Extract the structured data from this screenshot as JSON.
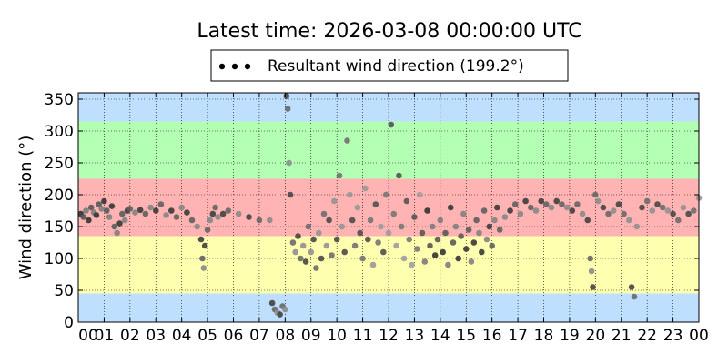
{
  "chart_data": {
    "type": "scatter",
    "title": "Latest time: 2026-03-08 00:00:00 UTC",
    "legend": {
      "label": "Resultant wind direction (199.2°)",
      "placement": "top-center"
    },
    "xlabel": "",
    "ylabel": "Wind direction (°)",
    "xlim": [
      0,
      24
    ],
    "ylim": [
      0,
      360
    ],
    "grid": true,
    "x_tick_labels": [
      "00",
      "01",
      "02",
      "03",
      "04",
      "05",
      "06",
      "07",
      "08",
      "09",
      "10",
      "11",
      "12",
      "13",
      "14",
      "15",
      "16",
      "17",
      "18",
      "19",
      "20",
      "21",
      "22",
      "23",
      "00"
    ],
    "y_ticks": [
      0,
      50,
      100,
      150,
      200,
      250,
      300,
      350
    ],
    "bands": [
      {
        "from": 0,
        "to": 45,
        "color": "#bfdfff"
      },
      {
        "from": 45,
        "to": 135,
        "color": "#ffffb0"
      },
      {
        "from": 135,
        "to": 225,
        "color": "#ffb3b3"
      },
      {
        "from": 225,
        "to": 315,
        "color": "#b3ffb3"
      },
      {
        "from": 315,
        "to": 360,
        "color": "#bfdfff"
      }
    ],
    "series": [
      {
        "point_color_range": [
          "#222222",
          "#aaaaaa"
        ],
        "points": [
          [
            0.1,
            170
          ],
          [
            0.2,
            165
          ],
          [
            0.3,
            175
          ],
          [
            0.4,
            160
          ],
          [
            0.5,
            180
          ],
          [
            0.6,
            172
          ],
          [
            0.7,
            168
          ],
          [
            0.8,
            185
          ],
          [
            0.9,
            178
          ],
          [
            1.0,
            190
          ],
          [
            1.1,
            175
          ],
          [
            1.2,
            165
          ],
          [
            1.3,
            182
          ],
          [
            1.4,
            150
          ],
          [
            1.5,
            140
          ],
          [
            1.6,
            155
          ],
          [
            1.7,
            170
          ],
          [
            1.8,
            160
          ],
          [
            1.9,
            175
          ],
          [
            2.0,
            178
          ],
          [
            2.2,
            172
          ],
          [
            2.4,
            176
          ],
          [
            2.6,
            170
          ],
          [
            2.8,
            180
          ],
          [
            3.0,
            175
          ],
          [
            3.2,
            185
          ],
          [
            3.4,
            168
          ],
          [
            3.6,
            175
          ],
          [
            3.8,
            165
          ],
          [
            4.0,
            180
          ],
          [
            4.2,
            172
          ],
          [
            4.4,
            160
          ],
          [
            4.6,
            150
          ],
          [
            4.75,
            130
          ],
          [
            4.8,
            100
          ],
          [
            4.85,
            85
          ],
          [
            4.9,
            120
          ],
          [
            5.0,
            145
          ],
          [
            5.1,
            160
          ],
          [
            5.2,
            170
          ],
          [
            5.3,
            180
          ],
          [
            5.4,
            165
          ],
          [
            5.6,
            170
          ],
          [
            5.8,
            175
          ],
          [
            6.2,
            170
          ],
          [
            6.6,
            165
          ],
          [
            7.0,
            160
          ],
          [
            7.4,
            160
          ],
          [
            7.5,
            30
          ],
          [
            7.6,
            20
          ],
          [
            7.7,
            15
          ],
          [
            7.8,
            12
          ],
          [
            7.9,
            25
          ],
          [
            8.0,
            20
          ],
          [
            8.05,
            355
          ],
          [
            8.1,
            335
          ],
          [
            8.15,
            250
          ],
          [
            8.2,
            200
          ],
          [
            8.3,
            125
          ],
          [
            8.4,
            110
          ],
          [
            8.5,
            135
          ],
          [
            8.6,
            100
          ],
          [
            8.7,
            120
          ],
          [
            8.8,
            95
          ],
          [
            8.9,
            150
          ],
          [
            9.0,
            110
          ],
          [
            9.1,
            130
          ],
          [
            9.2,
            85
          ],
          [
            9.3,
            140
          ],
          [
            9.4,
            100
          ],
          [
            9.5,
            170
          ],
          [
            9.6,
            120
          ],
          [
            9.7,
            160
          ],
          [
            9.8,
            105
          ],
          [
            9.9,
            190
          ],
          [
            10.0,
            130
          ],
          [
            10.1,
            230
          ],
          [
            10.2,
            150
          ],
          [
            10.3,
            110
          ],
          [
            10.4,
            285
          ],
          [
            10.5,
            200
          ],
          [
            10.6,
            160
          ],
          [
            10.7,
            120
          ],
          [
            10.8,
            180
          ],
          [
            10.9,
            140
          ],
          [
            11.0,
            100
          ],
          [
            11.1,
            210
          ],
          [
            11.2,
            130
          ],
          [
            11.3,
            160
          ],
          [
            11.4,
            90
          ],
          [
            11.5,
            185
          ],
          [
            11.6,
            125
          ],
          [
            11.7,
            150
          ],
          [
            11.8,
            110
          ],
          [
            11.9,
            200
          ],
          [
            12.0,
            140
          ],
          [
            12.1,
            310
          ],
          [
            12.2,
            170
          ],
          [
            12.3,
            120
          ],
          [
            12.4,
            230
          ],
          [
            12.5,
            150
          ],
          [
            12.6,
            100
          ],
          [
            12.7,
            190
          ],
          [
            12.8,
            130
          ],
          [
            12.9,
            90
          ],
          [
            13.0,
            165
          ],
          [
            13.1,
            115
          ],
          [
            13.2,
            200
          ],
          [
            13.3,
            140
          ],
          [
            13.4,
            95
          ],
          [
            13.5,
            175
          ],
          [
            13.6,
            120
          ],
          [
            13.7,
            150
          ],
          [
            13.8,
            105
          ],
          [
            13.9,
            130
          ],
          [
            14.0,
            160
          ],
          [
            14.1,
            110
          ],
          [
            14.2,
            140
          ],
          [
            14.3,
            90
          ],
          [
            14.4,
            180
          ],
          [
            14.5,
            125
          ],
          [
            14.6,
            150
          ],
          [
            14.7,
            100
          ],
          [
            14.8,
            135
          ],
          [
            14.9,
            170
          ],
          [
            15.0,
            115
          ],
          [
            15.1,
            145
          ],
          [
            15.2,
            95
          ],
          [
            15.3,
            125
          ],
          [
            15.4,
            160
          ],
          [
            15.5,
            140
          ],
          [
            15.6,
            110
          ],
          [
            15.7,
            175
          ],
          [
            15.8,
            130
          ],
          [
            15.9,
            150
          ],
          [
            16.0,
            120
          ],
          [
            16.1,
            160
          ],
          [
            16.2,
            180
          ],
          [
            16.3,
            145
          ],
          [
            16.5,
            165
          ],
          [
            16.7,
            175
          ],
          [
            16.9,
            185
          ],
          [
            17.1,
            170
          ],
          [
            17.3,
            190
          ],
          [
            17.5,
            180
          ],
          [
            17.7,
            175
          ],
          [
            17.9,
            190
          ],
          [
            18.1,
            185
          ],
          [
            18.3,
            180
          ],
          [
            18.5,
            190
          ],
          [
            18.7,
            185
          ],
          [
            18.9,
            180
          ],
          [
            19.1,
            175
          ],
          [
            19.3,
            185
          ],
          [
            19.5,
            170
          ],
          [
            19.7,
            160
          ],
          [
            19.8,
            100
          ],
          [
            19.85,
            80
          ],
          [
            19.9,
            55
          ],
          [
            20.0,
            200
          ],
          [
            20.1,
            190
          ],
          [
            20.3,
            180
          ],
          [
            20.5,
            170
          ],
          [
            20.7,
            175
          ],
          [
            20.9,
            185
          ],
          [
            21.1,
            170
          ],
          [
            21.3,
            160
          ],
          [
            21.4,
            55
          ],
          [
            21.5,
            40
          ],
          [
            21.6,
            150
          ],
          [
            21.8,
            180
          ],
          [
            22.0,
            190
          ],
          [
            22.2,
            175
          ],
          [
            22.4,
            185
          ],
          [
            22.6,
            180
          ],
          [
            22.8,
            175
          ],
          [
            23.0,
            170
          ],
          [
            23.2,
            160
          ],
          [
            23.4,
            180
          ],
          [
            23.6,
            170
          ],
          [
            23.8,
            175
          ],
          [
            24.0,
            195
          ]
        ]
      }
    ]
  }
}
